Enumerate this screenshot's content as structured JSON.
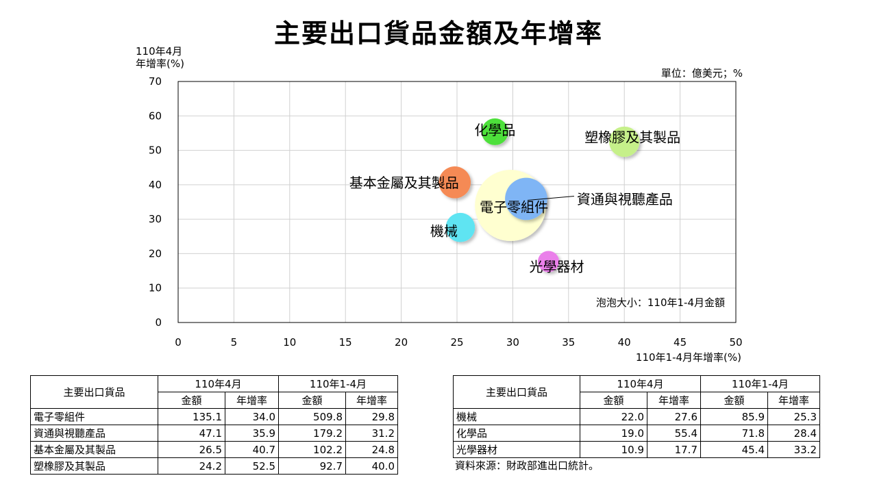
{
  "title": "主要出口貨品金額及年增率",
  "y_axis_label_line1": "110年4月",
  "y_axis_label_line2": "年增率(%)",
  "unit_note": "單位：億美元；%",
  "x_axis_label": "110年1-4月年增率(%)",
  "bubble_note": "泡泡大小：110年1-4月金額",
  "source": "資料來源：財政部進出口統計。",
  "chart_data": {
    "type": "scatter",
    "title": "主要出口貨品金額及年增率",
    "xlabel": "110年1-4月年增率(%)",
    "ylabel": "110年4月 年增率(%)",
    "xlim": [
      0,
      50
    ],
    "ylim": [
      0,
      70
    ],
    "xticks": [
      0,
      5,
      10,
      15,
      20,
      25,
      30,
      35,
      40,
      45,
      50
    ],
    "yticks": [
      0,
      10,
      20,
      30,
      40,
      50,
      60,
      70
    ],
    "grid": true,
    "bubble_size_field": "110年1-4月金額",
    "points": [
      {
        "name": "電子零組件",
        "x": 29.8,
        "y": 34.0,
        "size": 509.8,
        "color": "#ffffd0"
      },
      {
        "name": "資通與視聽產品",
        "x": 31.2,
        "y": 35.9,
        "size": 179.2,
        "color": "#7fb5f5"
      },
      {
        "name": "基本金屬及其製品",
        "x": 24.8,
        "y": 40.7,
        "size": 102.2,
        "color": "#f58a55"
      },
      {
        "name": "塑橡膠及其製品",
        "x": 40.0,
        "y": 52.5,
        "size": 92.7,
        "color": "#c6f08a"
      },
      {
        "name": "機械",
        "x": 25.3,
        "y": 27.6,
        "size": 85.9,
        "color": "#5ee4f2"
      },
      {
        "name": "化學品",
        "x": 28.4,
        "y": 55.4,
        "size": 71.8,
        "color": "#4ee03a"
      },
      {
        "name": "光學器材",
        "x": 33.2,
        "y": 17.7,
        "size": 45.4,
        "color": "#ea80ea"
      }
    ]
  },
  "table_left": {
    "header_name": "主要出口貨品",
    "group1": "110年4月",
    "group2": "110年1-4月",
    "col_amount": "金額",
    "col_growth": "年增率",
    "rows": [
      {
        "name": "電子零組件",
        "m_amt": "135.1",
        "m_g": "34.0",
        "y_amt": "509.8",
        "y_g": "29.8"
      },
      {
        "name": "資通與視聽產品",
        "m_amt": "47.1",
        "m_g": "35.9",
        "y_amt": "179.2",
        "y_g": "31.2"
      },
      {
        "name": "基本金屬及其製品",
        "m_amt": "26.5",
        "m_g": "40.7",
        "y_amt": "102.2",
        "y_g": "24.8"
      },
      {
        "name": "塑橡膠及其製品",
        "m_amt": "24.2",
        "m_g": "52.5",
        "y_amt": "92.7",
        "y_g": "40.0"
      }
    ]
  },
  "table_right": {
    "header_name": "主要出口貨品",
    "group1": "110年4月",
    "group2": "110年1-4月",
    "col_amount": "金額",
    "col_growth": "年增率",
    "rows": [
      {
        "name": "機械",
        "m_amt": "22.0",
        "m_g": "27.6",
        "y_amt": "85.9",
        "y_g": "25.3"
      },
      {
        "name": "化學品",
        "m_amt": "19.0",
        "m_g": "55.4",
        "y_amt": "71.8",
        "y_g": "28.4"
      },
      {
        "name": "光學器材",
        "m_amt": "10.9",
        "m_g": "17.7",
        "y_amt": "45.4",
        "y_g": "33.2"
      }
    ]
  }
}
